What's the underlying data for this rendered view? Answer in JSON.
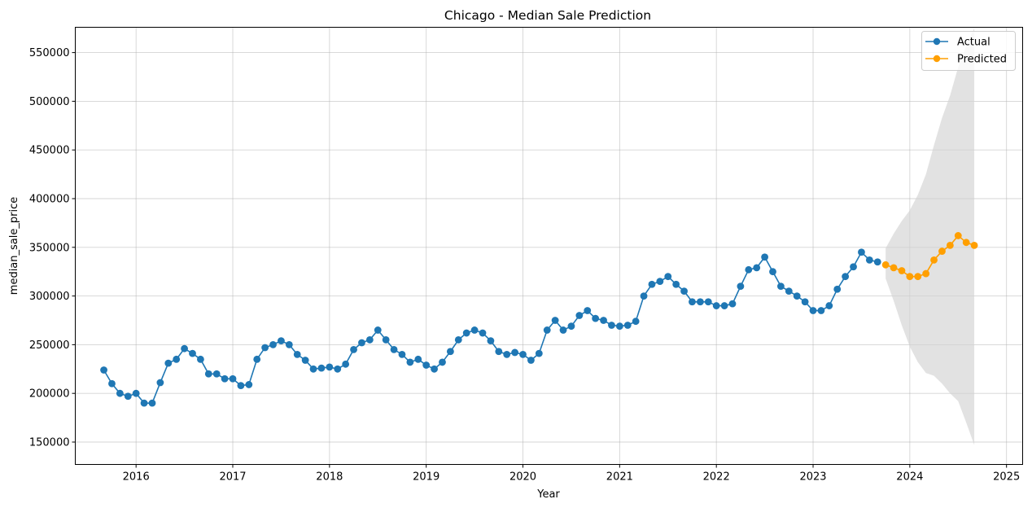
{
  "chart_data": {
    "type": "line",
    "title": "Chicago - Median Sale Prediction",
    "xlabel": "Year",
    "ylabel": "median_sale_price",
    "xlim": [
      "2015-05-15",
      "2025-03-01"
    ],
    "ylim": [
      127000,
      576000
    ],
    "x_ticks": [
      "2016",
      "2017",
      "2018",
      "2019",
      "2020",
      "2021",
      "2022",
      "2023",
      "2024",
      "2025"
    ],
    "y_ticks": [
      150000,
      200000,
      250000,
      300000,
      350000,
      400000,
      450000,
      500000,
      550000
    ],
    "grid": true,
    "legend_position": "upper right",
    "colors": {
      "actual": "#1f77b4",
      "predicted": "#ff9f00",
      "band": "#d3d3d3"
    },
    "series": [
      {
        "name": "Actual",
        "x": [
          "2015-09",
          "2015-10",
          "2015-11",
          "2015-12",
          "2016-01",
          "2016-02",
          "2016-03",
          "2016-04",
          "2016-05",
          "2016-06",
          "2016-07",
          "2016-08",
          "2016-09",
          "2016-10",
          "2016-11",
          "2016-12",
          "2017-01",
          "2017-02",
          "2017-03",
          "2017-04",
          "2017-05",
          "2017-06",
          "2017-07",
          "2017-08",
          "2017-09",
          "2017-10",
          "2017-11",
          "2017-12",
          "2018-01",
          "2018-02",
          "2018-03",
          "2018-04",
          "2018-05",
          "2018-06",
          "2018-07",
          "2018-08",
          "2018-09",
          "2018-10",
          "2018-11",
          "2018-12",
          "2019-01",
          "2019-02",
          "2019-03",
          "2019-04",
          "2019-05",
          "2019-06",
          "2019-07",
          "2019-08",
          "2019-09",
          "2019-10",
          "2019-11",
          "2019-12",
          "2020-01",
          "2020-02",
          "2020-03",
          "2020-04",
          "2020-05",
          "2020-06",
          "2020-07",
          "2020-08",
          "2020-09",
          "2020-10",
          "2020-11",
          "2020-12",
          "2021-01",
          "2021-02",
          "2021-03",
          "2021-04",
          "2021-05",
          "2021-06",
          "2021-07",
          "2021-08",
          "2021-09",
          "2021-10",
          "2021-11",
          "2021-12",
          "2022-01",
          "2022-02",
          "2022-03",
          "2022-04",
          "2022-05",
          "2022-06",
          "2022-07",
          "2022-08",
          "2022-09",
          "2022-10",
          "2022-11",
          "2022-12",
          "2023-01",
          "2023-02",
          "2023-03",
          "2023-04",
          "2023-05",
          "2023-06",
          "2023-07",
          "2023-08",
          "2023-09"
        ],
        "values": [
          224000,
          210000,
          200000,
          197000,
          200000,
          190000,
          190000,
          211000,
          231000,
          235000,
          246000,
          241000,
          235000,
          220000,
          220000,
          215000,
          215000,
          208000,
          209000,
          235000,
          247000,
          250000,
          254000,
          250000,
          240000,
          234000,
          225000,
          226000,
          227000,
          225000,
          230000,
          245000,
          252000,
          255000,
          265000,
          255000,
          245000,
          240000,
          232000,
          235000,
          229000,
          225000,
          232000,
          243000,
          255000,
          262000,
          265000,
          262000,
          254000,
          243000,
          240000,
          242000,
          240000,
          234000,
          241000,
          265000,
          275000,
          265000,
          269000,
          280000,
          285000,
          277000,
          275000,
          270000,
          269000,
          270000,
          274000,
          300000,
          312000,
          315000,
          320000,
          312000,
          305000,
          294000,
          294000,
          294000,
          290000,
          290000,
          292000,
          310000,
          327000,
          329000,
          340000,
          325000,
          310000,
          305000,
          300000,
          294000,
          285000,
          285000,
          290000,
          307000,
          320000,
          330000,
          345000,
          337000,
          335000
        ]
      },
      {
        "name": "Predicted",
        "x": [
          "2023-10",
          "2023-11",
          "2023-12",
          "2024-01",
          "2024-02",
          "2024-03",
          "2024-04",
          "2024-05",
          "2024-06",
          "2024-07",
          "2024-08",
          "2024-09"
        ],
        "values": [
          332000,
          329000,
          326000,
          320000,
          320000,
          323000,
          337000,
          346000,
          352000,
          362000,
          355000,
          352000
        ]
      }
    ],
    "interval": {
      "x": [
        "2023-10",
        "2023-11",
        "2023-12",
        "2024-01",
        "2024-02",
        "2024-03",
        "2024-04",
        "2024-05",
        "2024-06",
        "2024-07",
        "2024-08",
        "2024-09"
      ],
      "lower": [
        318000,
        295000,
        270000,
        248000,
        232000,
        221000,
        218000,
        210000,
        200000,
        192000,
        170000,
        147000
      ],
      "upper": [
        349000,
        364000,
        377000,
        388000,
        404000,
        425000,
        455000,
        483000,
        506000,
        535000,
        557000,
        575000
      ]
    }
  }
}
